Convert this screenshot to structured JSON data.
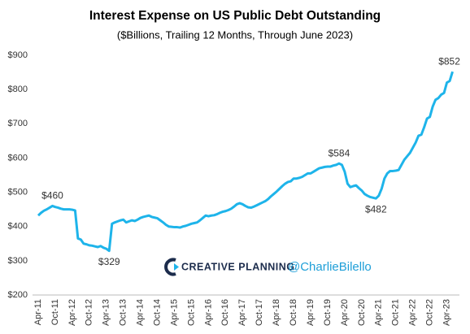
{
  "chart_data": {
    "type": "line",
    "title": "Interest Expense on US Public Debt Outstanding",
    "subtitle": "($Billions, Trailing 12 Months, Through June 2023)",
    "watermark": [
      "CREATIVE PLANNING",
      "@CharlieBilello"
    ],
    "ylim": [
      200,
      900
    ],
    "yticks": [
      {
        "value": 200,
        "label": "$200"
      },
      {
        "value": 300,
        "label": "$300"
      },
      {
        "value": 400,
        "label": "$400"
      },
      {
        "value": 500,
        "label": "$500"
      },
      {
        "value": 600,
        "label": "$600"
      },
      {
        "value": 700,
        "label": "$700"
      },
      {
        "value": 800,
        "label": "$800"
      },
      {
        "value": 900,
        "label": "$900"
      }
    ],
    "grid": false,
    "color": "#1eb4ea",
    "categories": [
      "Apr-11",
      null,
      null,
      null,
      null,
      null,
      "Oct-11",
      null,
      null,
      null,
      null,
      null,
      "Apr-12",
      null,
      null,
      null,
      null,
      null,
      "Oct-12",
      null,
      null,
      null,
      null,
      null,
      "Apr-13",
      null,
      null,
      null,
      null,
      null,
      "Oct-13",
      null,
      null,
      null,
      null,
      null,
      "Apr-14",
      null,
      null,
      null,
      null,
      null,
      "Oct-14",
      null,
      null,
      null,
      null,
      null,
      "Apr-15",
      null,
      null,
      null,
      null,
      null,
      "Oct-15",
      null,
      null,
      null,
      null,
      null,
      "Apr-16",
      null,
      null,
      null,
      null,
      null,
      "Oct-16",
      null,
      null,
      null,
      null,
      null,
      "Apr-17",
      null,
      null,
      null,
      null,
      null,
      "Oct-17",
      null,
      null,
      null,
      null,
      null,
      "Apr-18",
      null,
      null,
      null,
      null,
      null,
      "Oct-18",
      null,
      null,
      null,
      null,
      null,
      "Apr-19",
      null,
      null,
      null,
      null,
      null,
      "Oct-19",
      null,
      null,
      null,
      null,
      null,
      "Apr-20",
      null,
      null,
      null,
      null,
      null,
      "Oct-20",
      null,
      null,
      null,
      null,
      null,
      "Apr-21",
      null,
      null,
      null,
      null,
      null,
      "Oct-21",
      null,
      null,
      null,
      null,
      null,
      "Apr-22",
      null,
      null,
      null,
      null,
      null,
      "Oct-22",
      null,
      null,
      null,
      null,
      null,
      "Apr-23",
      null,
      null
    ],
    "values": [
      432,
      440,
      446,
      450,
      455,
      460,
      457,
      455,
      452,
      450,
      450,
      450,
      449,
      447,
      365,
      362,
      350,
      348,
      345,
      344,
      342,
      340,
      343,
      338,
      335,
      329,
      408,
      412,
      415,
      418,
      420,
      412,
      415,
      418,
      416,
      420,
      425,
      428,
      430,
      432,
      428,
      426,
      424,
      418,
      412,
      405,
      400,
      399,
      398,
      398,
      397,
      400,
      402,
      405,
      408,
      410,
      412,
      418,
      425,
      432,
      430,
      432,
      433,
      436,
      440,
      443,
      445,
      448,
      452,
      458,
      465,
      468,
      465,
      460,
      456,
      455,
      458,
      462,
      466,
      470,
      474,
      480,
      488,
      495,
      502,
      510,
      518,
      525,
      530,
      532,
      540,
      540,
      542,
      545,
      550,
      555,
      555,
      560,
      565,
      570,
      572,
      574,
      575,
      575,
      578,
      580,
      584,
      580,
      560,
      525,
      515,
      518,
      520,
      512,
      505,
      495,
      490,
      486,
      484,
      482,
      490,
      510,
      540,
      555,
      562,
      562,
      563,
      565,
      580,
      595,
      605,
      615,
      630,
      645,
      665,
      668,
      690,
      715,
      720,
      750,
      770,
      775,
      785,
      790,
      820,
      825,
      852
    ],
    "value_labels": [
      null,
      null,
      null,
      null,
      null,
      "$460",
      null,
      null,
      null,
      null,
      null,
      null,
      null,
      null,
      null,
      null,
      null,
      null,
      null,
      null,
      null,
      null,
      null,
      null,
      null,
      "$329",
      null,
      null,
      null,
      null,
      null,
      null,
      null,
      null,
      null,
      null,
      null,
      null,
      null,
      null,
      null,
      null,
      null,
      null,
      null,
      null,
      null,
      null,
      null,
      null,
      null,
      null,
      null,
      null,
      null,
      null,
      null,
      null,
      null,
      null,
      null,
      null,
      null,
      null,
      null,
      null,
      null,
      null,
      null,
      null,
      null,
      null,
      null,
      null,
      null,
      null,
      null,
      null,
      null,
      null,
      null,
      null,
      null,
      null,
      null,
      null,
      null,
      null,
      null,
      null,
      null,
      null,
      null,
      null,
      null,
      null,
      null,
      null,
      null,
      null,
      null,
      null,
      null,
      null,
      null,
      null,
      "$584",
      null,
      null,
      null,
      null,
      null,
      null,
      null,
      null,
      null,
      null,
      null,
      null,
      "$482",
      null,
      null,
      null,
      null,
      null,
      null,
      null,
      null,
      null,
      null,
      null,
      null,
      null,
      null,
      null,
      null,
      null,
      null,
      null,
      null,
      null,
      null,
      null,
      null,
      null,
      null,
      "$852"
    ]
  }
}
